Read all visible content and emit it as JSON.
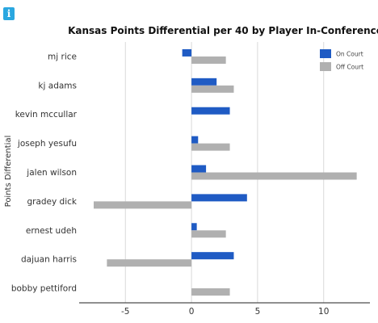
{
  "info_badge": "i",
  "chart_data": {
    "type": "bar",
    "orientation": "horizontal",
    "title": "Kansas Points Differential per 40 by Player In-Conference",
    "ylabel": "Points Differential",
    "xlabel": "",
    "categories": [
      "mj rice",
      "kj adams",
      "kevin mccullar",
      "joseph yesufu",
      "jalen wilson",
      "gradey dick",
      "ernest udeh",
      "dajuan harris",
      "bobby pettiford"
    ],
    "series": [
      {
        "name": "On Court",
        "color": "#1f5bc4",
        "values": [
          -0.7,
          1.9,
          2.9,
          0.5,
          1.1,
          4.2,
          0.4,
          3.2,
          null
        ]
      },
      {
        "name": "Off Court",
        "color": "#b0b0b0",
        "values": [
          2.6,
          3.2,
          null,
          2.9,
          12.5,
          -7.4,
          2.6,
          -6.4,
          2.9
        ]
      }
    ],
    "xlim": [
      -8.5,
      13.5
    ],
    "xticks": [
      -5,
      0,
      5,
      10
    ],
    "grid": true,
    "legend_position": "top-right"
  }
}
